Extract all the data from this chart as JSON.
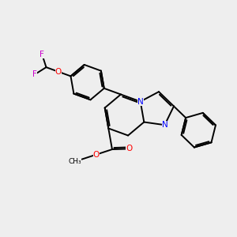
{
  "bg_color": "#eeeeee",
  "bond_color": "#000000",
  "n_color": "#0000ff",
  "o_color": "#ff0000",
  "f_color": "#cc00cc",
  "line_width": 1.4,
  "dbo": 0.06,
  "xlim": [
    0,
    10
  ],
  "ylim": [
    0,
    10
  ]
}
